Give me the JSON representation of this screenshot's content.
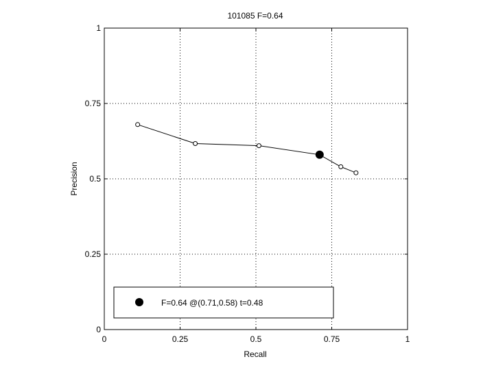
{
  "chart_data": {
    "type": "line",
    "title": "101085 F=0.64",
    "xlabel": "Recall",
    "ylabel": "Precision",
    "xlim": [
      0,
      1
    ],
    "ylim": [
      0,
      1
    ],
    "xticks": [
      "0",
      "0.25",
      "0.5",
      "0.75",
      "1"
    ],
    "yticks": [
      "0",
      "0.25",
      "0.5",
      "0.75",
      "1"
    ],
    "grid": true,
    "series": [
      {
        "x": [
          0.11,
          0.3,
          0.51,
          0.71,
          0.78,
          0.83
        ],
        "y": [
          0.68,
          0.617,
          0.61,
          0.58,
          0.54,
          0.52
        ]
      }
    ],
    "best_point": {
      "x": 0.71,
      "y": 0.58
    },
    "legend": {
      "position": "bottom-left",
      "label": "F=0.64 @(0.71,0.58) t=0.48"
    }
  }
}
